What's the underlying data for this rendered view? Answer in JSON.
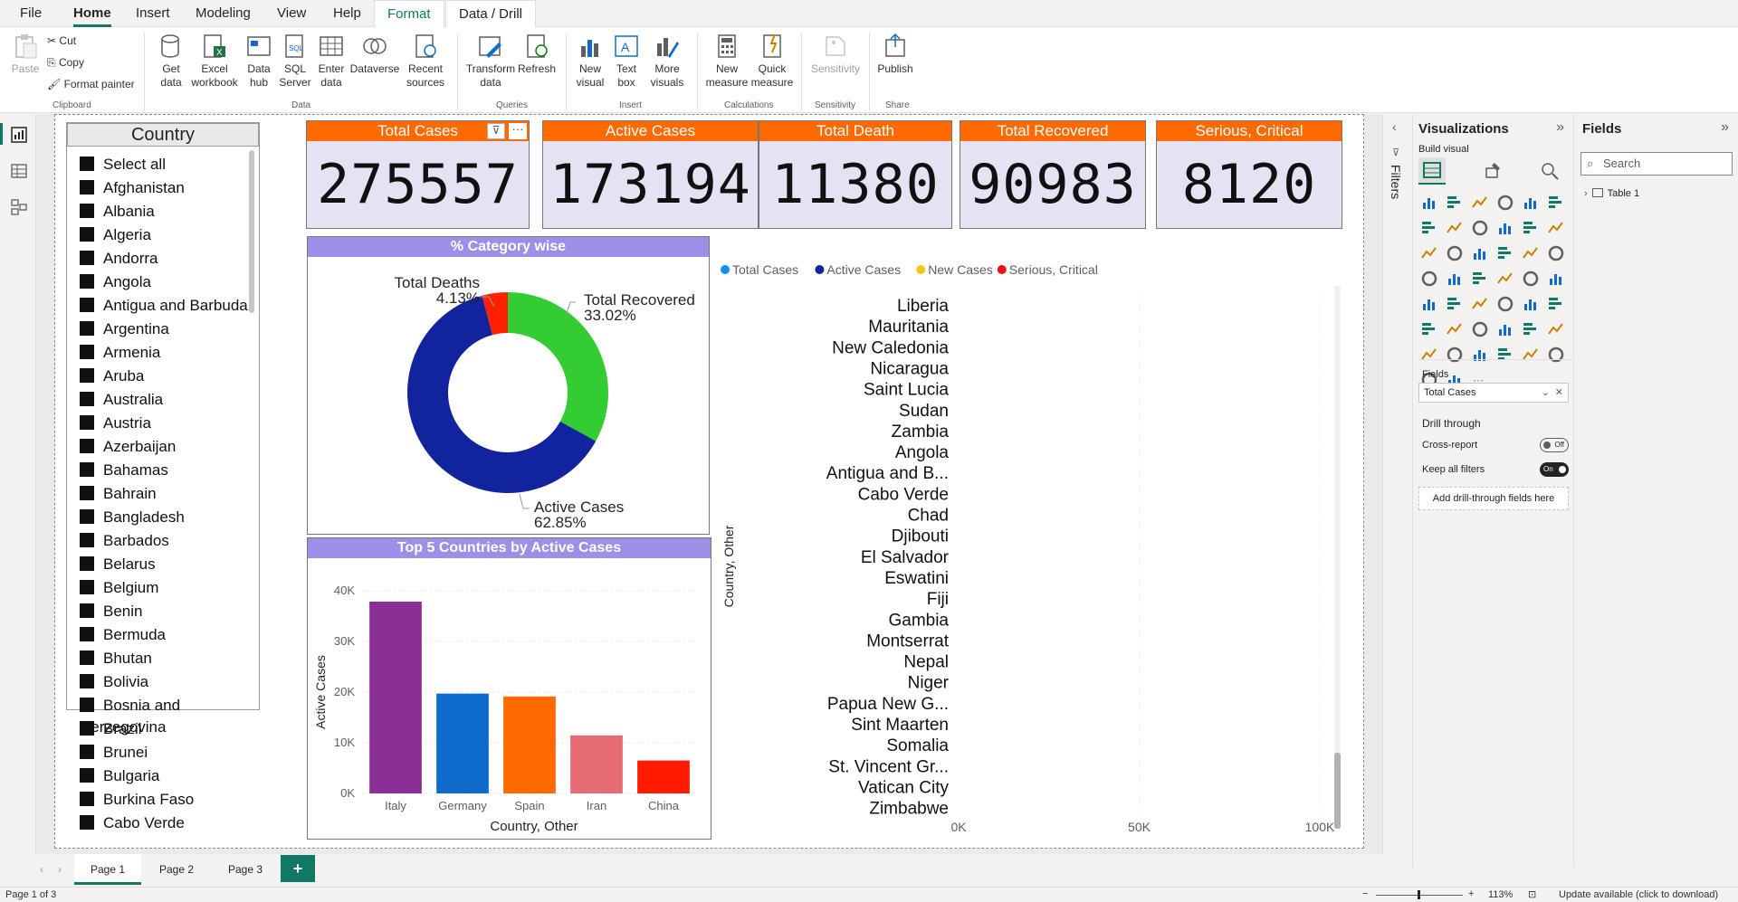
{
  "menu": {
    "items": [
      "File",
      "Home",
      "Insert",
      "Modeling",
      "View",
      "Help"
    ],
    "context": [
      "Format",
      "Data / Drill"
    ],
    "active": "Home"
  },
  "ribbon": {
    "clipboard": {
      "paste": "Paste",
      "cut": "Cut",
      "copy": "Copy",
      "format_painter": "Format painter",
      "group": "Clipboard"
    },
    "data": {
      "get_data": "Get data",
      "excel": "Excel workbook",
      "hub": "Data hub",
      "sql": "SQL Server",
      "enter": "Enter data",
      "dataverse": "Dataverse",
      "recent": "Recent sources",
      "group": "Data"
    },
    "queries": {
      "transform": "Transform data",
      "refresh": "Refresh",
      "group": "Queries"
    },
    "insert": {
      "new_visual": "New visual",
      "text_box": "Text box",
      "more_visuals": "More visuals",
      "group": "Insert"
    },
    "calculations": {
      "new_measure": "New measure",
      "quick_measure": "Quick measure",
      "group": "Calculations"
    },
    "sensitivity": {
      "label": "Sensitivity",
      "group": "Sensitivity"
    },
    "share": {
      "publish": "Publish",
      "group": "Share"
    }
  },
  "slicer": {
    "title": "Country",
    "items": [
      "Select all",
      "Afghanistan",
      "Albania",
      "Algeria",
      "Andorra",
      "Angola",
      "Antigua and Barbuda",
      "Argentina",
      "Armenia",
      "Aruba",
      "Australia",
      "Austria",
      "Azerbaijan",
      "Bahamas",
      "Bahrain",
      "Bangladesh",
      "Barbados",
      "Belarus",
      "Belgium",
      "Benin",
      "Bermuda",
      "Bhutan",
      "Bolivia",
      "Bosnia and Herzegovina",
      "Brazil",
      "Brunei",
      "Bulgaria",
      "Burkina Faso",
      "Cabo Verde"
    ]
  },
  "cards": [
    {
      "title": "Total Cases",
      "value": "275557"
    },
    {
      "title": "Active Cases",
      "value": "173194"
    },
    {
      "title": "Total Death",
      "value": "11380"
    },
    {
      "title": "Total Recovered",
      "value": "90983"
    },
    {
      "title": "Serious, Critical",
      "value": "8120"
    }
  ],
  "donut": {
    "title": "% Category wise",
    "chart_data": {
      "type": "pie",
      "slices": [
        {
          "name": "Total Recovered",
          "value": 33.02,
          "label": "33.02%",
          "color": "#33cc33"
        },
        {
          "name": "Active Cases",
          "value": 62.85,
          "label": "62.85%",
          "color": "#12239e"
        },
        {
          "name": "Total Deaths",
          "value": 4.13,
          "label": "4.13%",
          "color": "#ff2200"
        }
      ]
    }
  },
  "bar": {
    "title": "Top 5 Countries by Active Cases",
    "chart_data": {
      "type": "bar",
      "categories": [
        "Italy",
        "Germany",
        "Spain",
        "Iran",
        "China"
      ],
      "values": [
        37860,
        19710,
        19140,
        11460,
        6500
      ],
      "colors": [
        "#8b2f96",
        "#0f6bcc",
        "#ff6a00",
        "#e66c74",
        "#ff1a00"
      ],
      "xlabel": "Country, Other",
      "ylabel": "Active Cases",
      "yticks": [
        "0K",
        "10K",
        "20K",
        "30K",
        "40K"
      ],
      "ylim": [
        0,
        40000
      ]
    }
  },
  "hbar": {
    "legend": [
      {
        "name": "Total Cases",
        "color": "#118dff"
      },
      {
        "name": "Active Cases",
        "color": "#12239e"
      },
      {
        "name": "New Cases",
        "color": "#f2c80f"
      },
      {
        "name": "Serious, Critical",
        "color": "#e81010"
      }
    ],
    "chart_data": {
      "type": "bar",
      "orientation": "horizontal",
      "categories": [
        "Liberia",
        "Mauritania",
        "New Caledonia",
        "Nicaragua",
        "Saint Lucia",
        "Sudan",
        "Zambia",
        "Angola",
        "Antigua and B...",
        "Cabo Verde",
        "Chad",
        "Djibouti",
        "El Salvador",
        "Eswatini",
        "Fiji",
        "Gambia",
        "Montserrat",
        "Nepal",
        "Niger",
        "Papua New G...",
        "Sint Maarten",
        "Somalia",
        "St. Vincent Gr...",
        "Vatican City",
        "Zimbabwe"
      ],
      "ylabel": "Country, Other",
      "xticks": [
        "0K",
        "50K",
        "100K"
      ],
      "xlim": [
        0,
        100000
      ]
    }
  },
  "panes": {
    "filters": "Filters",
    "viz_title": "Visualizations",
    "build_visual": "Build visual",
    "fields_label": "Fields",
    "field_value": "Total Cases",
    "drill_through": "Drill through",
    "cross_report": "Cross-report",
    "cross_state": "Off",
    "keep_filters": "Keep all filters",
    "keep_state": "On",
    "add_drill": "Add drill-through fields here",
    "fields_title": "Fields",
    "search": "Search",
    "table": "Table 1"
  },
  "pages": [
    "Page 1",
    "Page 2",
    "Page 3"
  ],
  "add_page": "+",
  "status": {
    "page": "Page 1 of 3",
    "zoom": "113%",
    "update": "Update available (click to download)"
  }
}
